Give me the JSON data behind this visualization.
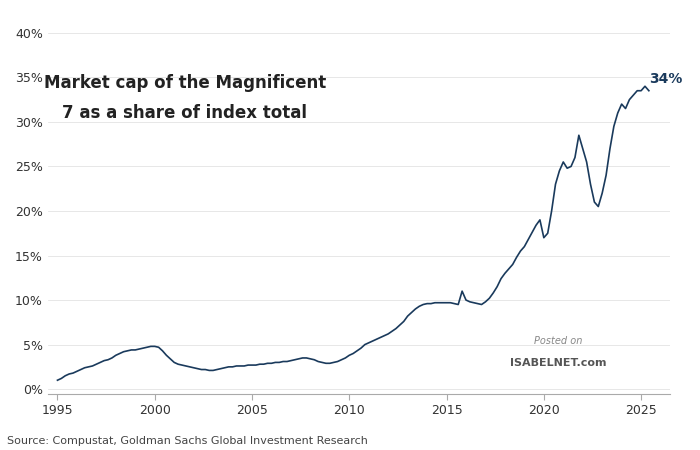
{
  "title_line1": "Market cap of the Magnificent",
  "title_line2": "7 as a share of index total",
  "source_text": "Source: Compustat, Goldman Sachs Global Investment Research",
  "watermark_line1": "Posted on",
  "watermark_line2": "ISABELNET.com",
  "annotation_text": "34%",
  "line_color": "#1a3a5c",
  "background_color": "#ffffff",
  "xlim": [
    1994.5,
    2026.5
  ],
  "ylim": [
    -0.005,
    0.42
  ],
  "yticks": [
    0.0,
    0.05,
    0.1,
    0.15,
    0.2,
    0.25,
    0.3,
    0.35,
    0.4
  ],
  "ytick_labels": [
    "0%",
    "5%",
    "10%",
    "15%",
    "20%",
    "25%",
    "30%",
    "35%",
    "40%"
  ],
  "xticks": [
    1995,
    2000,
    2005,
    2010,
    2015,
    2020,
    2025
  ],
  "data_x": [
    1995.0,
    1995.2,
    1995.4,
    1995.6,
    1995.8,
    1996.0,
    1996.2,
    1996.4,
    1996.6,
    1996.8,
    1997.0,
    1997.2,
    1997.4,
    1997.6,
    1997.8,
    1998.0,
    1998.2,
    1998.4,
    1998.6,
    1998.8,
    1999.0,
    1999.2,
    1999.4,
    1999.6,
    1999.8,
    2000.0,
    2000.2,
    2000.4,
    2000.6,
    2000.8,
    2001.0,
    2001.2,
    2001.4,
    2001.6,
    2001.8,
    2002.0,
    2002.2,
    2002.4,
    2002.6,
    2002.8,
    2003.0,
    2003.2,
    2003.4,
    2003.6,
    2003.8,
    2004.0,
    2004.2,
    2004.4,
    2004.6,
    2004.8,
    2005.0,
    2005.2,
    2005.4,
    2005.6,
    2005.8,
    2006.0,
    2006.2,
    2006.4,
    2006.6,
    2006.8,
    2007.0,
    2007.2,
    2007.4,
    2007.6,
    2007.8,
    2008.0,
    2008.2,
    2008.4,
    2008.6,
    2008.8,
    2009.0,
    2009.2,
    2009.4,
    2009.6,
    2009.8,
    2010.0,
    2010.2,
    2010.4,
    2010.6,
    2010.8,
    2011.0,
    2011.2,
    2011.4,
    2011.6,
    2011.8,
    2012.0,
    2012.2,
    2012.4,
    2012.6,
    2012.8,
    2013.0,
    2013.2,
    2013.4,
    2013.6,
    2013.8,
    2014.0,
    2014.2,
    2014.4,
    2014.6,
    2014.8,
    2015.0,
    2015.2,
    2015.4,
    2015.6,
    2015.8,
    2016.0,
    2016.2,
    2016.4,
    2016.6,
    2016.8,
    2017.0,
    2017.2,
    2017.4,
    2017.6,
    2017.8,
    2018.0,
    2018.2,
    2018.4,
    2018.6,
    2018.8,
    2019.0,
    2019.2,
    2019.4,
    2019.6,
    2019.8,
    2020.0,
    2020.2,
    2020.4,
    2020.6,
    2020.8,
    2021.0,
    2021.2,
    2021.4,
    2021.6,
    2021.8,
    2022.0,
    2022.2,
    2022.4,
    2022.6,
    2022.8,
    2023.0,
    2023.2,
    2023.4,
    2023.6,
    2023.8,
    2024.0,
    2024.2,
    2024.4,
    2024.6,
    2024.8,
    2025.0,
    2025.2,
    2025.4
  ],
  "data_y": [
    0.01,
    0.012,
    0.015,
    0.017,
    0.018,
    0.02,
    0.022,
    0.024,
    0.025,
    0.026,
    0.028,
    0.03,
    0.032,
    0.033,
    0.035,
    0.038,
    0.04,
    0.042,
    0.043,
    0.044,
    0.044,
    0.045,
    0.046,
    0.047,
    0.048,
    0.048,
    0.047,
    0.043,
    0.038,
    0.034,
    0.03,
    0.028,
    0.027,
    0.026,
    0.025,
    0.024,
    0.023,
    0.022,
    0.022,
    0.021,
    0.021,
    0.022,
    0.023,
    0.024,
    0.025,
    0.025,
    0.026,
    0.026,
    0.026,
    0.027,
    0.027,
    0.027,
    0.028,
    0.028,
    0.029,
    0.029,
    0.03,
    0.03,
    0.031,
    0.031,
    0.032,
    0.033,
    0.034,
    0.035,
    0.035,
    0.034,
    0.033,
    0.031,
    0.03,
    0.029,
    0.029,
    0.03,
    0.031,
    0.033,
    0.035,
    0.038,
    0.04,
    0.043,
    0.046,
    0.05,
    0.052,
    0.054,
    0.056,
    0.058,
    0.06,
    0.062,
    0.065,
    0.068,
    0.072,
    0.076,
    0.082,
    0.086,
    0.09,
    0.093,
    0.095,
    0.096,
    0.096,
    0.097,
    0.097,
    0.097,
    0.097,
    0.097,
    0.096,
    0.095,
    0.11,
    0.1,
    0.098,
    0.097,
    0.096,
    0.095,
    0.098,
    0.102,
    0.108,
    0.115,
    0.124,
    0.13,
    0.135,
    0.14,
    0.148,
    0.155,
    0.16,
    0.168,
    0.176,
    0.184,
    0.19,
    0.17,
    0.175,
    0.2,
    0.23,
    0.245,
    0.255,
    0.248,
    0.25,
    0.26,
    0.285,
    0.27,
    0.255,
    0.23,
    0.21,
    0.205,
    0.22,
    0.24,
    0.27,
    0.295,
    0.31,
    0.32,
    0.315,
    0.325,
    0.33,
    0.335,
    0.335,
    0.34,
    0.335
  ]
}
